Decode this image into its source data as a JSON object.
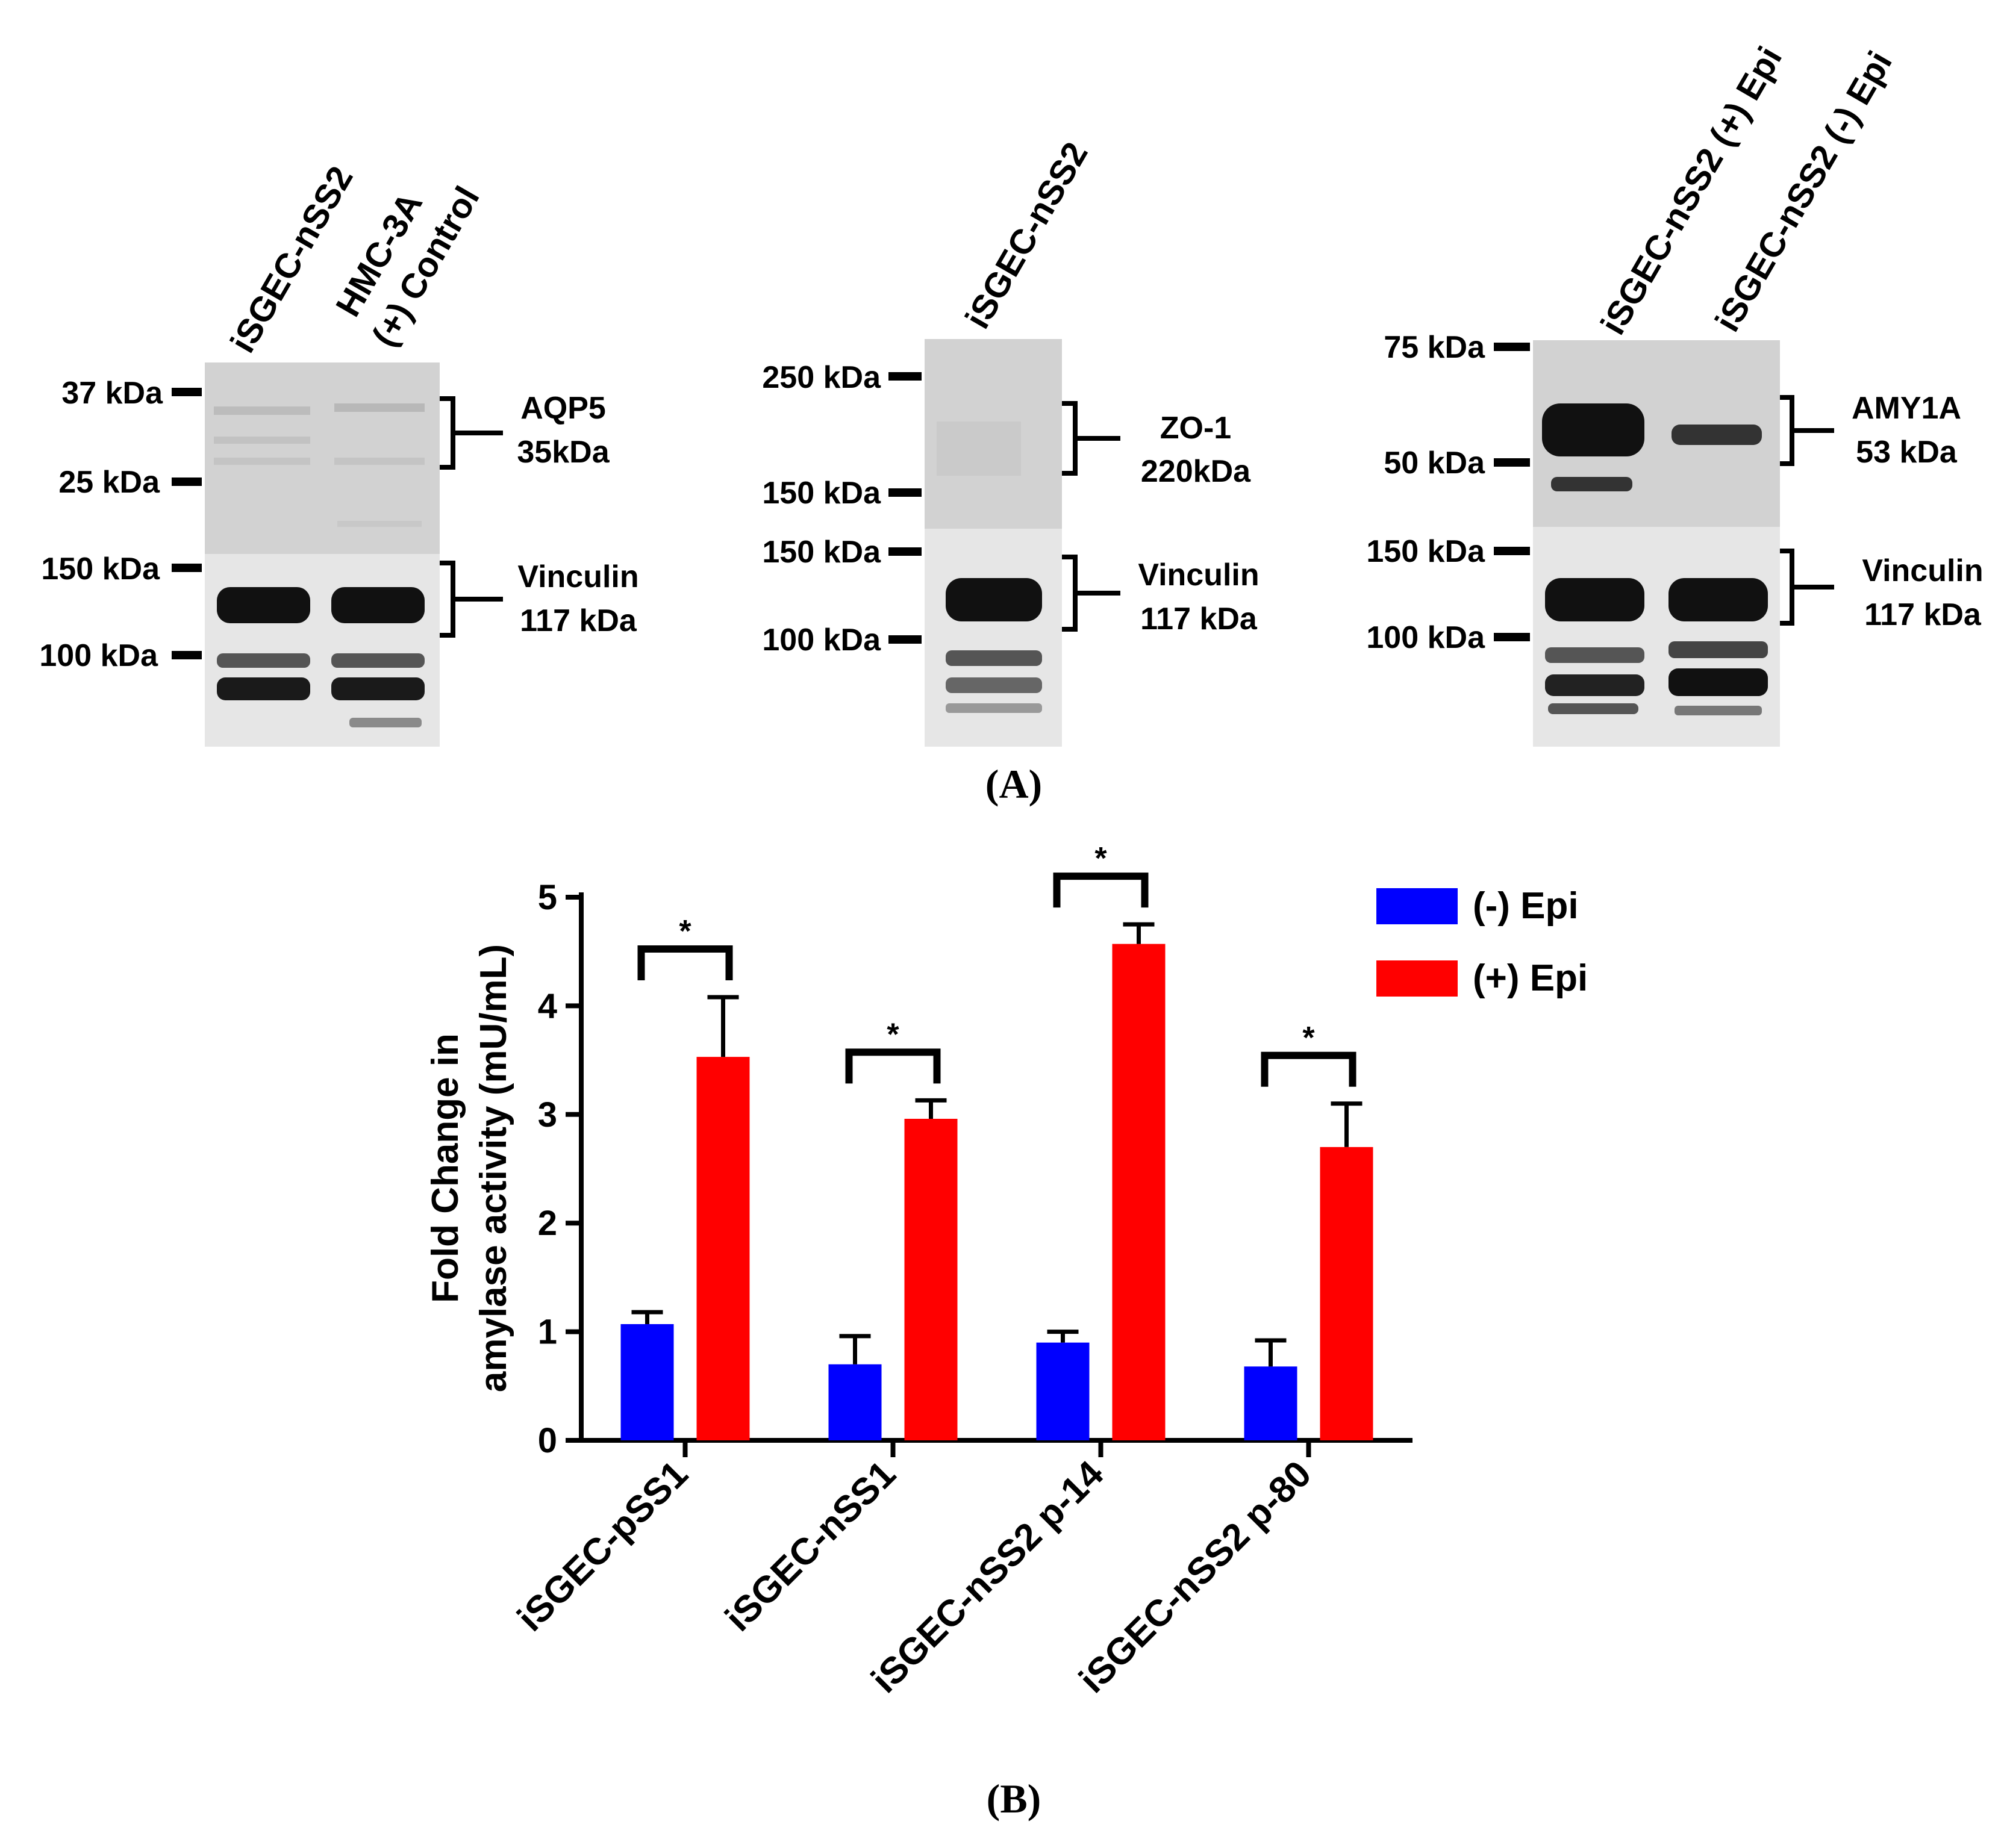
{
  "panel_labels": {
    "a": "(A)",
    "b": "(B)"
  },
  "western_blots": [
    {
      "lanes": [
        "iSGEC-nSS2",
        "HMC-3A\n(+) Control"
      ],
      "markers_top": [
        "37 kDa",
        "25 kDa"
      ],
      "markers_bottom": [
        "150 kDa",
        "100 kDa"
      ],
      "target_label": [
        "AQP5",
        "35kDa"
      ],
      "loading_label": [
        "Vinculin",
        "117 kDa"
      ]
    },
    {
      "lanes": [
        "iSGEC-nSS2"
      ],
      "markers_top": [
        "250 kDa",
        "150 kDa"
      ],
      "markers_bottom": [
        "150 kDa",
        "100 kDa"
      ],
      "target_label": [
        "ZO-1",
        "220kDa"
      ],
      "loading_label": [
        "Vinculin",
        "117 kDa"
      ]
    },
    {
      "lanes": [
        "iSGEC-nSS2 (+) Epi",
        "iSGEC-nSS2 (-) Epi"
      ],
      "markers_top": [
        "75 kDa",
        "50 kDa"
      ],
      "markers_bottom": [
        "150 kDa",
        "100 kDa"
      ],
      "target_label": [
        "AMY1A",
        "53 kDa"
      ],
      "loading_label": [
        "Vinculin",
        "117 kDa"
      ]
    }
  ],
  "chart_data": {
    "type": "bar",
    "ylabel": [
      "Fold Change in",
      "amylase activity (mU/mL)"
    ],
    "ylim": [
      0,
      5
    ],
    "yticks": [
      "0",
      "1",
      "2",
      "3",
      "4",
      "5"
    ],
    "categories": [
      "iSGEC-pSS1",
      "iSGEC-nSS1",
      "iSGEC-nSS2 p-14",
      "iSGEC-nSS2 p-80"
    ],
    "series": [
      {
        "name": "(-) Epi",
        "color": "#0000ff",
        "values": [
          1.07,
          0.7,
          0.9,
          0.68
        ],
        "errors": [
          0.11,
          0.26,
          0.1,
          0.24
        ]
      },
      {
        "name": "(+) Epi",
        "color": "#ff0000",
        "values": [
          3.53,
          2.96,
          4.57,
          2.7
        ],
        "errors": [
          0.55,
          0.17,
          0.18,
          0.4
        ]
      }
    ],
    "significance": [
      "*",
      "*",
      "*",
      "*"
    ],
    "legend_position": "top-right",
    "grid": false
  }
}
